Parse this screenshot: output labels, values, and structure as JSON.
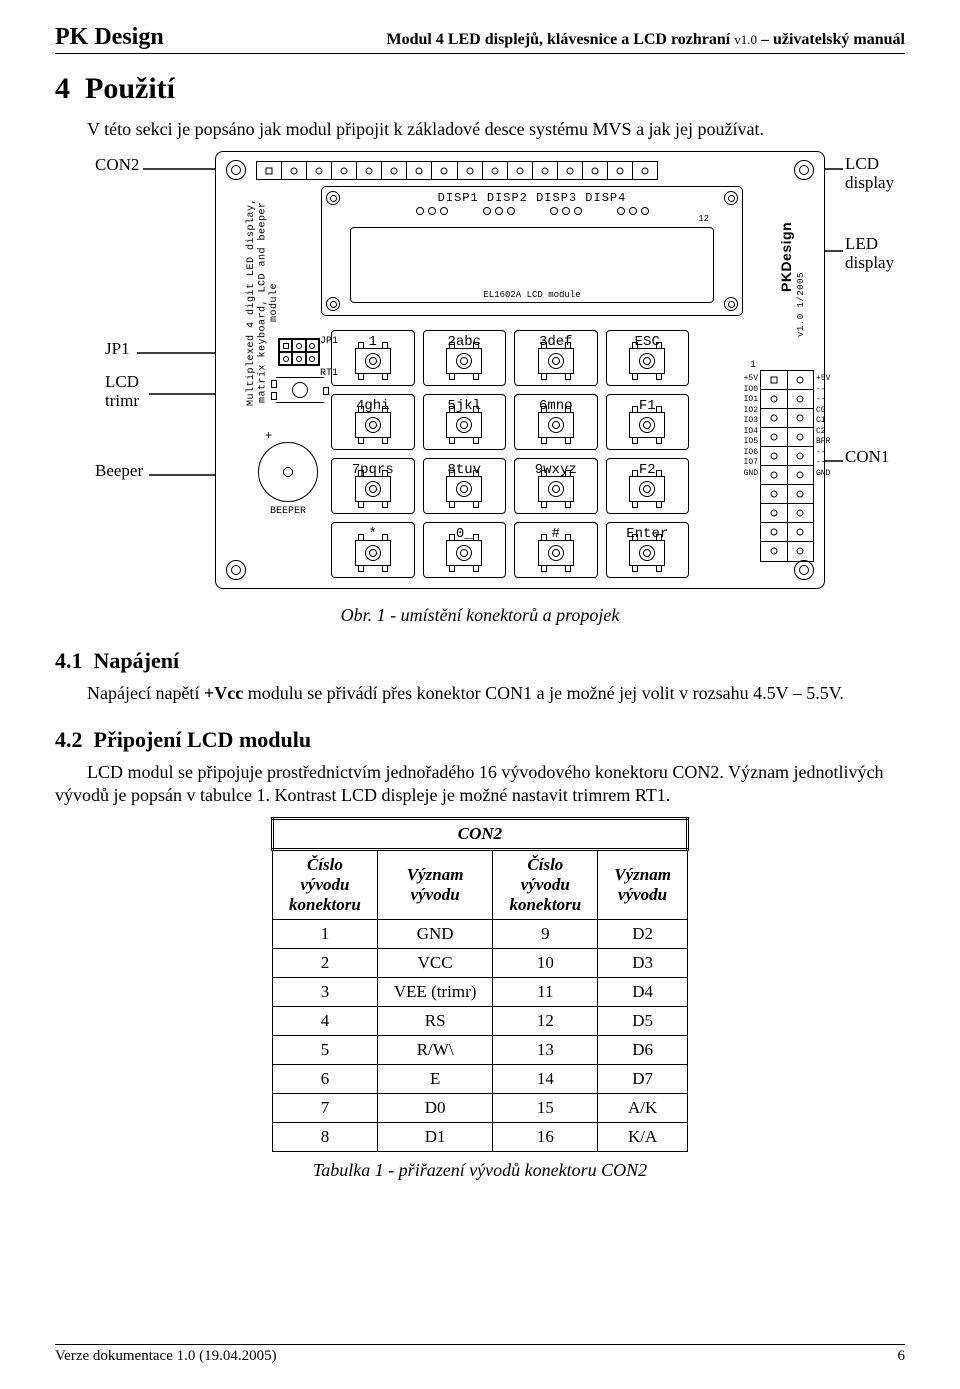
{
  "header": {
    "brand": "PK Design",
    "title_main": "Modul 4 LED displejů, klávesnice a LCD rozhraní ",
    "title_ver": "v1.0",
    "title_tail": " – uživatelský manuál"
  },
  "section": {
    "num": "4",
    "title": "Použití"
  },
  "subsection_41": {
    "num": "4.1",
    "title": "Napájení"
  },
  "subsection_42": {
    "num": "4.2",
    "title": "Připojení LCD modulu"
  },
  "para_intro": "V této sekci je popsáno jak modul připojit k základové desce systému MVS a jak jej používat.",
  "para_napaj": "Napájecí napětí +Vcc modulu se přivádí přes konektor CON1 a je možné jej volit v rozsahu 4.5V – 5.5V.",
  "para_napaj_prefix": "Napájecí napětí ",
  "para_napaj_bold": "+Vcc",
  "para_napaj_suffix": " modulu se přivádí přes konektor CON1 a je možné jej volit v rozsahu 4.5V – 5.5V.",
  "para_lcd": "LCD modul se připojuje prostřednictvím jednořadého 16 vývodového konektoru CON2. Význam jednotlivých vývodů je popsán v tabulce 1. Kontrast LCD displeje je možné nastavit trimrem RT1.",
  "caption_fig": "Obr. 1 - umístění konektorů a propojek",
  "caption_tbl": "Tabulka 1  - přiřazení vývodů konektoru CON2",
  "labels": {
    "con2": "CON2",
    "jp1": "JP1",
    "trimr": "LCD trimr",
    "beep": "Beeper",
    "lcd": "LCD display",
    "led": "LED display",
    "con1": "CON1"
  },
  "pcb": {
    "disp_labels": "DISP1 DISP2 DISP3 DISP4",
    "lcd_tag": "EL1602A LCD module",
    "vtext_line1": "Multiplexed 4 digit LED display,",
    "vtext_line2": "matrix keyboard, LCD and beeper module",
    "jp1_label": "JP1",
    "rt1_label": "RT1",
    "beeper_label": "BEEPER",
    "version": "v1.0 1/2005",
    "twelve": "12",
    "one_marker": "1",
    "con1_left": [
      "+5V",
      "IO0",
      "IO1",
      "IO2",
      "IO3",
      "IO4",
      "IO5",
      "IO6",
      "IO7",
      "GND"
    ],
    "con1_right": [
      "+5V",
      "--",
      "--",
      "C0",
      "C1",
      "C2",
      "BPR",
      "--",
      "--",
      "GND"
    ]
  },
  "keypad": [
    [
      "1",
      "2abc",
      "3def",
      "ESC"
    ],
    [
      "4ghi",
      "5jkl",
      "6mno",
      "F1"
    ],
    [
      "7pqrs",
      "8tuv",
      "9wxyz",
      "F2"
    ],
    [
      "*",
      "0_",
      "#",
      "Enter"
    ]
  ],
  "table": {
    "title": "CON2",
    "headers": [
      "Číslo vývodu konektoru",
      "Význam vývodu",
      "Číslo vývodu konektoru",
      "Význam vývodu"
    ],
    "rows": [
      [
        "1",
        "GND",
        "9",
        "D2"
      ],
      [
        "2",
        "VCC",
        "10",
        "D3"
      ],
      [
        "3",
        "VEE (trimr)",
        "11",
        "D4"
      ],
      [
        "4",
        "RS",
        "12",
        "D5"
      ],
      [
        "5",
        "R/W\\",
        "13",
        "D6"
      ],
      [
        "6",
        "E",
        "14",
        "D7"
      ],
      [
        "7",
        "D0",
        "15",
        "A/K"
      ],
      [
        "8",
        "D1",
        "16",
        "K/A"
      ]
    ]
  },
  "footer": {
    "left": "Verze dokumentace 1.0 (19.04.2005)",
    "page": "6"
  }
}
